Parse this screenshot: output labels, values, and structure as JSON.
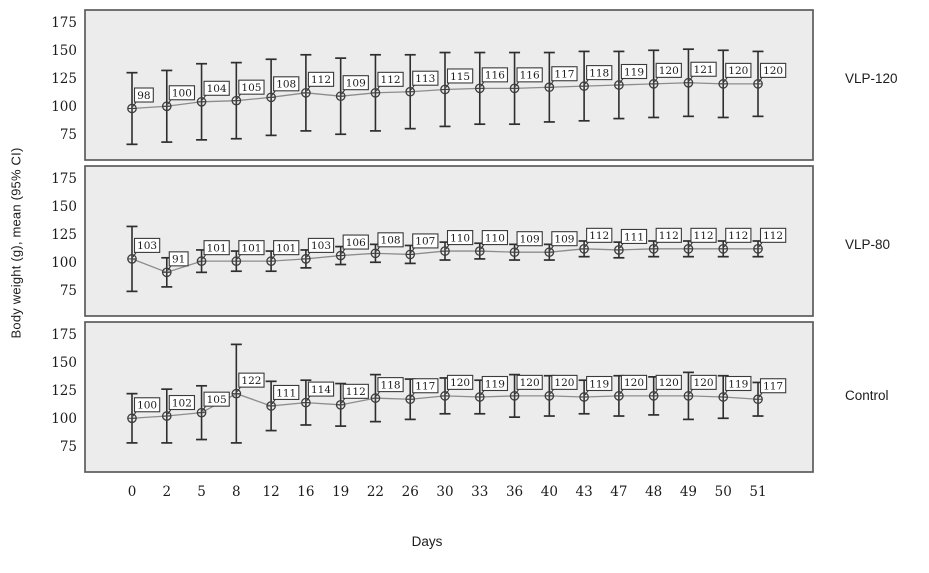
{
  "figure": {
    "ylabel": "Body weight (g), mean (95% CI)",
    "xlabel": "Days"
  },
  "chart_data": {
    "type": "line",
    "title": "",
    "layout": "three vertically stacked panels sharing one x axis; each panel shows one group with point markers, 95% CI error bars and boxed value labels",
    "xlabel": "Days",
    "ylabel": "Body weight (g), mean (95% CI)",
    "x": [
      0,
      2,
      5,
      8,
      12,
      16,
      19,
      22,
      26,
      30,
      33,
      36,
      40,
      43,
      47,
      48,
      49,
      50,
      51
    ],
    "y_ticks": [
      75,
      100,
      125,
      150,
      175
    ],
    "ylim": [
      52,
      186
    ],
    "grid": false,
    "panel_label_position": "right of each panel",
    "series": [
      {
        "name": "VLP-120",
        "means": [
          98,
          100,
          104,
          105,
          108,
          112,
          109,
          112,
          113,
          115,
          116,
          116,
          117,
          118,
          119,
          120,
          121,
          120,
          120
        ],
        "ci_half": [
          32,
          32,
          34,
          34,
          34,
          34,
          34,
          34,
          33,
          33,
          32,
          32,
          31,
          31,
          30,
          30,
          30,
          30,
          29
        ]
      },
      {
        "name": "VLP-80",
        "means": [
          103,
          91,
          101,
          101,
          101,
          103,
          106,
          108,
          107,
          110,
          110,
          109,
          109,
          112,
          111,
          112,
          112,
          112,
          112
        ],
        "ci_half": [
          29,
          13,
          10,
          9,
          9,
          8,
          8,
          8,
          8,
          8,
          7,
          7,
          7,
          7,
          7,
          7,
          7,
          7,
          7
        ]
      },
      {
        "name": "Control",
        "means": [
          100,
          102,
          105,
          122,
          111,
          114,
          112,
          118,
          117,
          120,
          119,
          120,
          120,
          119,
          120,
          120,
          120,
          119,
          117
        ],
        "ci_half": [
          22,
          24,
          24,
          44,
          22,
          20,
          19,
          21,
          18,
          16,
          15,
          19,
          18,
          15,
          18,
          17,
          21,
          19,
          15
        ]
      }
    ],
    "colors": {
      "panel_bg": "#ececec",
      "panel_border": "#5c5c5c",
      "trend_line": "#8c8c8c",
      "error_bar": "#2e2e2e",
      "marker": "#3d3d3d",
      "label_box_bg": "#ffffff",
      "label_box_border": "#3a3a3a",
      "text": "#1c1c1c"
    }
  }
}
